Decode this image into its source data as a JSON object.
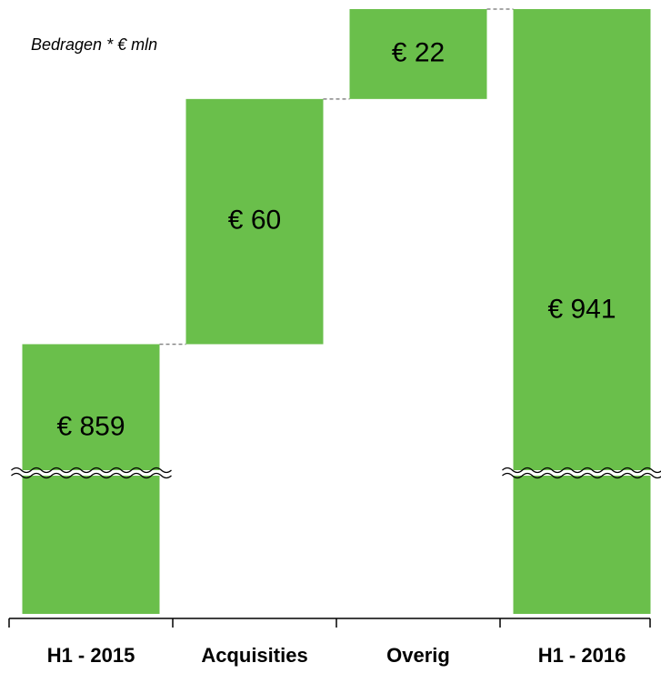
{
  "chart_data": {
    "type": "waterfall",
    "subtitle": "Bedragen * € mln",
    "categories": [
      "H1 - 2015",
      "Acquisities",
      "Overig",
      "H1 - 2016"
    ],
    "values": [
      859,
      60,
      22,
      941
    ],
    "value_labels": [
      "€ 859",
      "€ 60",
      "€ 22",
      "€ 941"
    ],
    "color": "#6abf4b",
    "ylim": [
      793,
      941
    ],
    "axis_break": true
  }
}
